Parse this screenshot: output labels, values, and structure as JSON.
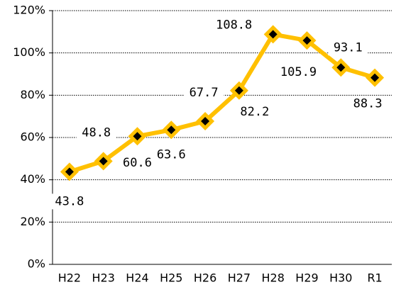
{
  "chart_data": {
    "type": "line",
    "categories": [
      "H22",
      "H23",
      "H24",
      "H25",
      "H26",
      "H27",
      "H28",
      "H29",
      "H30",
      "R1"
    ],
    "series": [
      {
        "name": "value",
        "color": "#ffc000",
        "values": [
          43.8,
          48.8,
          60.6,
          63.6,
          67.7,
          82.2,
          108.8,
          105.9,
          93.1,
          88.3
        ]
      }
    ],
    "ylim": [
      0,
      120
    ],
    "yticks": [
      {
        "value": 0,
        "label": "0%"
      },
      {
        "value": 20,
        "label": "20%"
      },
      {
        "value": 40,
        "label": "40%"
      },
      {
        "value": 60,
        "label": "60%"
      },
      {
        "value": 80,
        "label": "80%"
      },
      {
        "value": 100,
        "label": "100%"
      },
      {
        "value": 120,
        "label": "120%"
      }
    ],
    "grid": true
  }
}
